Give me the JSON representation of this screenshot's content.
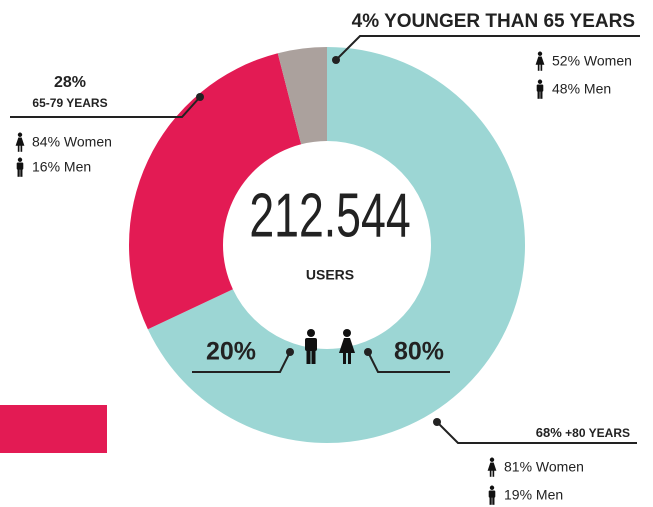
{
  "chart_data": {
    "type": "donut",
    "total": "212.544",
    "total_label": "USERS",
    "categories": [
      "+80 YEARS",
      "65-79 YEARS",
      "YOUNGER THAN 65 YEARS"
    ],
    "values": [
      68,
      28,
      4
    ],
    "value_labels": [
      "68%",
      "28%",
      "4%"
    ],
    "colors": [
      "#9cd6d4",
      "#e31b54",
      "#aba19d"
    ],
    "breakdown": [
      [
        "81% Women",
        "19% Men"
      ],
      [
        "84% Women",
        "16% Men"
      ],
      [
        "52% Women",
        "48% Men"
      ]
    ],
    "gender_split": [
      "20%",
      "80%"
    ]
  }
}
